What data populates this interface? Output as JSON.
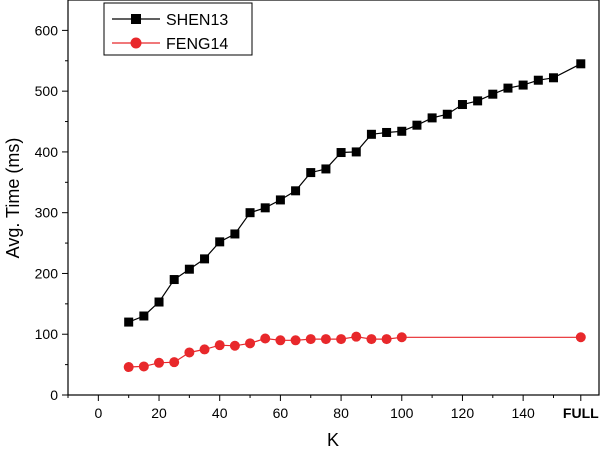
{
  "chart_data": {
    "type": "line",
    "title": "",
    "xlabel": "K",
    "ylabel": "Avg. Time (ms)",
    "xlim": [
      -10,
      165
    ],
    "ylim": [
      0,
      650
    ],
    "x_ticks": [
      0,
      20,
      40,
      60,
      80,
      100,
      120,
      140
    ],
    "x_tick_labels": [
      "0",
      "20",
      "40",
      "60",
      "80",
      "100",
      "120",
      "140"
    ],
    "x_special_tick": {
      "label": "FULL",
      "bold": true
    },
    "y_ticks": [
      0,
      100,
      200,
      300,
      400,
      500,
      600
    ],
    "y_tick_labels": [
      "0",
      "100",
      "200",
      "300",
      "400",
      "500",
      "600"
    ],
    "grid": false,
    "legend": {
      "position": "top-left"
    },
    "series": [
      {
        "name": "SHEN13",
        "color": "#000000",
        "marker": "square",
        "x": [
          10,
          15,
          20,
          25,
          30,
          35,
          40,
          45,
          50,
          55,
          60,
          65,
          70,
          75,
          80,
          85,
          90,
          95,
          100,
          105,
          110,
          115,
          120,
          125,
          130,
          135,
          140,
          145,
          150,
          "FULL"
        ],
        "values": [
          120,
          130,
          153,
          190,
          207,
          224,
          252,
          265,
          300,
          308,
          321,
          336,
          366,
          372,
          399,
          400,
          429,
          432,
          434,
          444,
          456,
          462,
          478,
          484,
          495,
          505,
          510,
          518,
          522,
          545
        ]
      },
      {
        "name": "FENG14",
        "color": "#e8282b",
        "marker": "circle",
        "x": [
          10,
          15,
          20,
          25,
          30,
          35,
          40,
          45,
          50,
          55,
          60,
          65,
          70,
          75,
          80,
          85,
          90,
          95,
          100,
          "FULL"
        ],
        "values": [
          46,
          47,
          53,
          54,
          70,
          75,
          82,
          81,
          85,
          93,
          90,
          90,
          92,
          92,
          92,
          96,
          92,
          92,
          95,
          95
        ]
      }
    ]
  }
}
